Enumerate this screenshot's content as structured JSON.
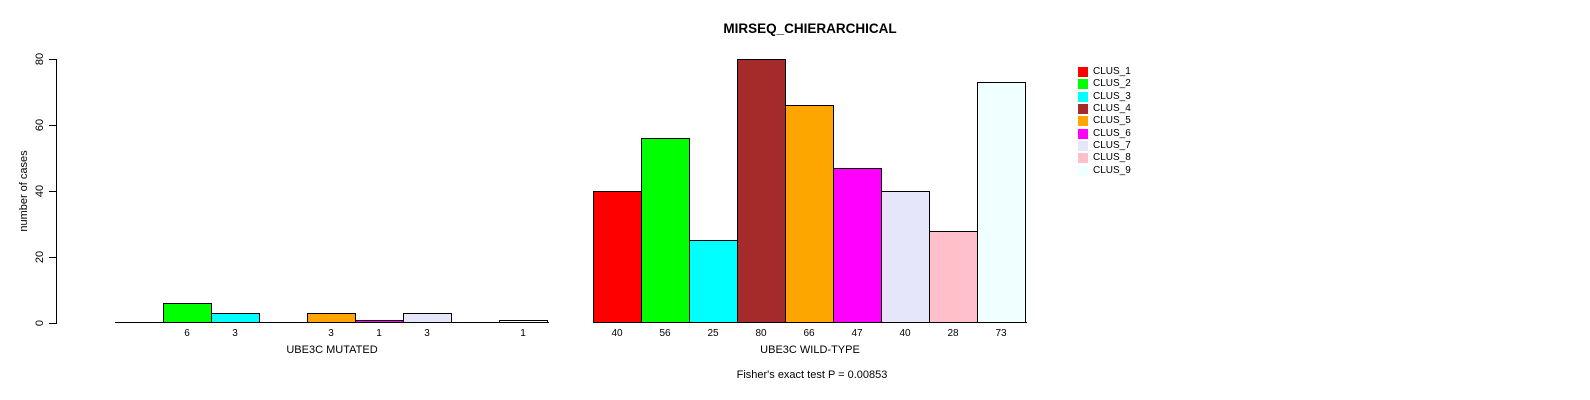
{
  "title": "MIRSEQ_CHIERARCHICAL",
  "y_axis": {
    "label": "number of cases",
    "ticks": [
      "0",
      "20",
      "40",
      "60",
      "80"
    ]
  },
  "footnote": "Fisher's exact test P = 0.00853",
  "chart_data": {
    "type": "bar",
    "title": "MIRSEQ_CHIERARCHICAL",
    "xlabel": "",
    "ylabel": "number of cases",
    "ylim": [
      0,
      80
    ],
    "yticks": [
      0,
      20,
      40,
      60,
      80
    ],
    "grid": false,
    "legend_position": "right",
    "bar_labels": true,
    "categories": [
      "CLUS_1",
      "CLUS_2",
      "CLUS_3",
      "CLUS_4",
      "CLUS_5",
      "CLUS_6",
      "CLUS_7",
      "CLUS_8",
      "CLUS_9"
    ],
    "palette": [
      "#FF0000",
      "#00FF00",
      "#00FFFF",
      "#A52A2A",
      "#FFA500",
      "#FF00FF",
      "#E6E6FA",
      "#FFC0CB",
      "#F0FFFF"
    ],
    "groups": [
      {
        "label": "UBE3C MUTATED",
        "values": [
          0,
          6,
          3,
          0,
          3,
          1,
          3,
          0,
          1
        ]
      },
      {
        "label": "UBE3C WILD-TYPE",
        "values": [
          40,
          56,
          25,
          80,
          66,
          47,
          40,
          28,
          73
        ]
      }
    ],
    "annotation": "Fisher's exact test P = 0.00853"
  }
}
